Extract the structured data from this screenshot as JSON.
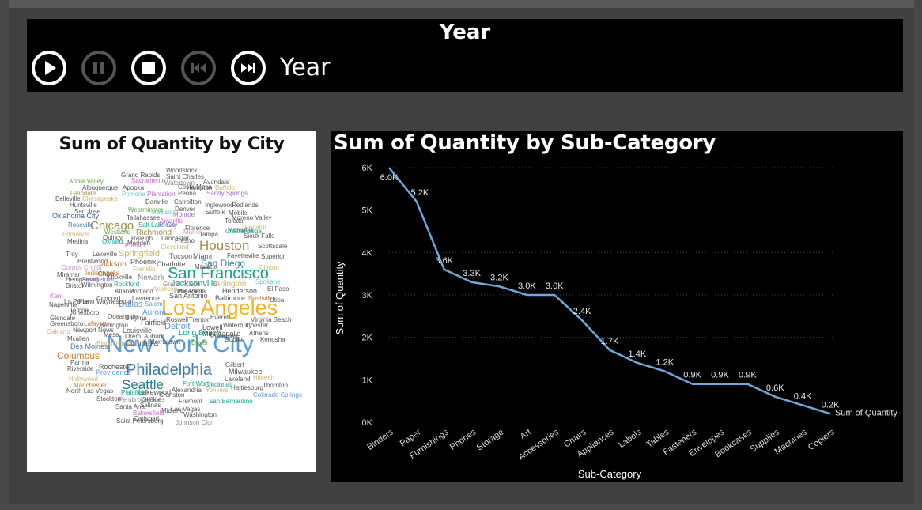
{
  "player": {
    "title": "Year",
    "label": "Year",
    "buttons": [
      {
        "name": "play-button",
        "icon": "play-icon",
        "enabled": true
      },
      {
        "name": "pause-button",
        "icon": "pause-icon",
        "enabled": false
      },
      {
        "name": "stop-button",
        "icon": "stop-icon",
        "enabled": true
      },
      {
        "name": "skip-back-button",
        "icon": "skip-back-icon",
        "enabled": false
      },
      {
        "name": "skip-forward-button",
        "icon": "skip-forward-icon",
        "enabled": true
      }
    ]
  },
  "wordcloud": {
    "title": "Sum of Quantity by City",
    "words": [
      {
        "text": "New York City",
        "color": "#5b9bd5"
      },
      {
        "text": "Los Angeles",
        "color": "#f0b429"
      },
      {
        "text": "Philadelphia",
        "color": "#3a7ca5"
      },
      {
        "text": "San Francisco",
        "color": "#17a08a"
      },
      {
        "text": "Seattle",
        "color": "#1f7a8c"
      },
      {
        "text": "Houston",
        "color": "#a08c4e"
      },
      {
        "text": "Chicago",
        "color": "#a08c4e"
      },
      {
        "text": "Columbus",
        "color": "#c97a2e"
      },
      {
        "text": "San Diego",
        "color": "#3a7ca5"
      },
      {
        "text": "Springfield",
        "color": "#c9b86e"
      },
      {
        "text": "Dallas",
        "color": "#5b9bd5"
      },
      {
        "text": "Jacksonville",
        "color": "#17a08a"
      },
      {
        "text": "Detroit",
        "color": "#5b9bd5"
      },
      {
        "text": "Jackson",
        "color": "#c97a2e"
      },
      {
        "text": "Richmond",
        "color": "#a08c4e"
      },
      {
        "text": "Columbia",
        "color": "#555555"
      },
      {
        "text": "Long Beach",
        "color": "#17a08a"
      },
      {
        "text": "Aurora",
        "color": "#5b9bd5"
      },
      {
        "text": "Newark",
        "color": "#888888"
      },
      {
        "text": "Arlington",
        "color": "#c9b86e"
      },
      {
        "text": "Henderson",
        "color": "#555555"
      },
      {
        "text": "Phoenix",
        "color": "#555555"
      },
      {
        "text": "Charlotte",
        "color": "#555555"
      },
      {
        "text": "Miami",
        "color": "#555555"
      },
      {
        "text": "Tucson",
        "color": "#555555"
      },
      {
        "text": "San Antonio",
        "color": "#555555"
      },
      {
        "text": "Lakewood",
        "color": "#555555"
      },
      {
        "text": "Fairfield",
        "color": "#555555"
      },
      {
        "text": "Louisville",
        "color": "#555555"
      },
      {
        "text": "Milwaukee",
        "color": "#555555"
      },
      {
        "text": "Providence",
        "color": "#5b9bd5"
      },
      {
        "text": "Rochester",
        "color": "#555555"
      },
      {
        "text": "Des Moines",
        "color": "#3a7ca5"
      },
      {
        "text": "Oklahoma City",
        "color": "#3a5ca5"
      },
      {
        "text": "Franklin",
        "color": "#c9b86e"
      },
      {
        "text": "Baltimore",
        "color": "#555555"
      },
      {
        "text": "Minneapolis",
        "color": "#555555"
      },
      {
        "text": "Lowell",
        "color": "#555555"
      },
      {
        "text": "Pasadena",
        "color": "#555555"
      },
      {
        "text": "Salem",
        "color": "#5b9bd5"
      },
      {
        "text": "Portland",
        "color": "#555555"
      },
      {
        "text": "Atlanta",
        "color": "#555555"
      },
      {
        "text": "Burlington",
        "color": "#555555"
      },
      {
        "text": "Concord",
        "color": "#555555"
      },
      {
        "text": "Lawrence",
        "color": "#555555"
      },
      {
        "text": "Knoxville",
        "color": "#555555"
      },
      {
        "text": "Indianapolis",
        "color": "#c97a2e"
      },
      {
        "text": "Wilmington",
        "color": "#555555"
      },
      {
        "text": "Brentwood",
        "color": "#555555"
      },
      {
        "text": "Huntsville",
        "color": "#555555"
      },
      {
        "text": "San Jose",
        "color": "#555555"
      },
      {
        "text": "Quincy",
        "color": "#555555"
      },
      {
        "text": "Memphis",
        "color": "#555555"
      },
      {
        "text": "Lancaster",
        "color": "#555555"
      },
      {
        "text": "Tampa",
        "color": "#555555"
      },
      {
        "text": "Fayetteville",
        "color": "#555555"
      },
      {
        "text": "Chester",
        "color": "#555555"
      },
      {
        "text": "Dublin",
        "color": "#555555"
      },
      {
        "text": "Gilbert",
        "color": "#555555"
      },
      {
        "text": "Lakeland",
        "color": "#555555"
      },
      {
        "text": "Alexandria",
        "color": "#555555"
      },
      {
        "text": "Washington",
        "color": "#555555"
      },
      {
        "text": "Yonkers",
        "color": "#c9b86e"
      },
      {
        "text": "Fort Worth",
        "color": "#17a08a"
      },
      {
        "text": "Cincinnati",
        "color": "#17a08a"
      },
      {
        "text": "Manchester",
        "color": "#c97a2e"
      },
      {
        "text": "Plainfield",
        "color": "#17a08a"
      },
      {
        "text": "Stockton",
        "color": "#555555"
      },
      {
        "text": "Mesa",
        "color": "#555555"
      },
      {
        "text": "Orem",
        "color": "#555555"
      },
      {
        "text": "Auburn",
        "color": "#555555"
      },
      {
        "text": "Dover",
        "color": "#5ca63a"
      },
      {
        "text": "Smyrna",
        "color": "#555555"
      },
      {
        "text": "Roswell",
        "color": "#555555"
      },
      {
        "text": "Trenton",
        "color": "#555555"
      },
      {
        "text": "Everett",
        "color": "#555555"
      },
      {
        "text": "Toledo",
        "color": "#555555"
      },
      {
        "text": "Denver",
        "color": "#555555"
      },
      {
        "text": "Costa Mesa",
        "color": "#555555"
      },
      {
        "text": "Apopka",
        "color": "#555555"
      },
      {
        "text": "Grand Rapids",
        "color": "#555555"
      },
      {
        "text": "Woodstock",
        "color": "#555555"
      },
      {
        "text": "Saint Charles",
        "color": "#555555"
      },
      {
        "text": "Sacramento",
        "color": "#cc66cc"
      },
      {
        "text": "Watertown",
        "color": "#888888"
      },
      {
        "text": "Avondale",
        "color": "#555555"
      },
      {
        "text": "Apple Valley",
        "color": "#5ca63a"
      },
      {
        "text": "Albuquerque",
        "color": "#555555"
      },
      {
        "text": "Glendale",
        "color": "#a08c4e"
      },
      {
        "text": "Belleville",
        "color": "#555555"
      },
      {
        "text": "Chesapeake",
        "color": "#c9b86e"
      },
      {
        "text": "Pomona",
        "color": "#5ccccc"
      },
      {
        "text": "Plantation",
        "color": "#cc66cc"
      },
      {
        "text": "Peoria",
        "color": "#555555"
      },
      {
        "text": "Sandy Springs",
        "color": "#9966cc"
      },
      {
        "text": "Hampton",
        "color": "#555555"
      },
      {
        "text": "Buffalo",
        "color": "#c9b86e"
      },
      {
        "text": "Westminster",
        "color": "#5ca63a"
      },
      {
        "text": "Danville",
        "color": "#555555"
      },
      {
        "text": "Carrollton",
        "color": "#555555"
      },
      {
        "text": "Inglewood",
        "color": "#555555"
      },
      {
        "text": "Redlands",
        "color": "#555555"
      },
      {
        "text": "Suffolk",
        "color": "#555555"
      },
      {
        "text": "Mobile",
        "color": "#555555"
      },
      {
        "text": "Moreno Valley",
        "color": "#555555"
      },
      {
        "text": "Monroe",
        "color": "#9966cc"
      },
      {
        "text": "Madison",
        "color": "#5ccccc"
      },
      {
        "text": "Amarillo",
        "color": "#cc66cc"
      },
      {
        "text": "Tallahassee",
        "color": "#555555"
      },
      {
        "text": "Roseville",
        "color": "#3a7ca5"
      },
      {
        "text": "Westland",
        "color": "#5ca63a"
      },
      {
        "text": "Edmonds",
        "color": "#c9b86e"
      },
      {
        "text": "Salt Lake City",
        "color": "#17a08a"
      },
      {
        "text": "Provo",
        "color": "#9966cc"
      },
      {
        "text": "Florence",
        "color": "#555555"
      },
      {
        "text": "Marion",
        "color": "#cc99cc"
      },
      {
        "text": "Decatur",
        "color": "#c9b86e"
      },
      {
        "text": "Chattanooga",
        "color": "#17a08a"
      },
      {
        "text": "Sioux Falls",
        "color": "#555555"
      },
      {
        "text": "Scottsdale",
        "color": "#555555"
      },
      {
        "text": "Medina",
        "color": "#555555"
      },
      {
        "text": "Oxnard",
        "color": "#17a08a"
      },
      {
        "text": "Meriden",
        "color": "#555555"
      },
      {
        "text": "Raleigh",
        "color": "#555555"
      },
      {
        "text": "Pueblo",
        "color": "#cc66cc"
      },
      {
        "text": "Cleveland",
        "color": "#c9b86e"
      },
      {
        "text": "Fresno",
        "color": "#555555"
      },
      {
        "text": "Troy",
        "color": "#555555"
      },
      {
        "text": "Lakeville",
        "color": "#555555"
      },
      {
        "text": "Superior",
        "color": "#555555"
      },
      {
        "text": "Clinton",
        "color": "#c9b86e"
      },
      {
        "text": "Corpus Christi",
        "color": "#cc99cc"
      },
      {
        "text": "Marietta",
        "color": "#555555"
      },
      {
        "text": "Miramar",
        "color": "#555555"
      },
      {
        "text": "Chico",
        "color": "#555555"
      },
      {
        "text": "Spokane",
        "color": "#5ccccc"
      },
      {
        "text": "El Paso",
        "color": "#555555"
      },
      {
        "text": "Hempstead",
        "color": "#555555"
      },
      {
        "text": "Georgetown",
        "color": "#9966cc"
      },
      {
        "text": "Bristol",
        "color": "#555555"
      },
      {
        "text": "Rockford",
        "color": "#17a08a"
      },
      {
        "text": "Grand Prairie",
        "color": "#888888"
      },
      {
        "text": "Little Rock",
        "color": "#555555"
      },
      {
        "text": "Anaheim",
        "color": "#c9b86e"
      },
      {
        "text": "Kent",
        "color": "#cc66cc"
      },
      {
        "text": "Nashville",
        "color": "#c97a2e"
      },
      {
        "text": "Utica",
        "color": "#555555"
      },
      {
        "text": "La Porte",
        "color": "#555555"
      },
      {
        "text": "Waynesboro",
        "color": "#555555"
      },
      {
        "text": "Plano",
        "color": "#555555"
      },
      {
        "text": "Naperville",
        "color": "#555555"
      },
      {
        "text": "Morristown",
        "color": "#555555"
      },
      {
        "text": "Tempe",
        "color": "#555555"
      },
      {
        "text": "Jonesboro",
        "color": "#555555"
      },
      {
        "text": "Glendale",
        "color": "#555555"
      },
      {
        "text": "Oceanside",
        "color": "#555555"
      },
      {
        "text": "Waterbury",
        "color": "#555555"
      },
      {
        "text": "Virginia Beach",
        "color": "#555555"
      },
      {
        "text": "Greensboro",
        "color": "#555555"
      },
      {
        "text": "Lafayette",
        "color": "#c97a2e"
      },
      {
        "text": "Oakland",
        "color": "#c9b86e"
      },
      {
        "text": "Newport News",
        "color": "#555555"
      },
      {
        "text": "Athens",
        "color": "#555555"
      },
      {
        "text": "Redmond",
        "color": "#555555"
      },
      {
        "text": "Kenosha",
        "color": "#555555"
      },
      {
        "text": "Mcallen",
        "color": "#555555"
      },
      {
        "text": "Bloomington",
        "color": "#c9b86e"
      },
      {
        "text": "Parma",
        "color": "#555555"
      },
      {
        "text": "Riverside",
        "color": "#555555"
      },
      {
        "text": "Hollywood",
        "color": "#c9b86e"
      },
      {
        "text": "Hialeah",
        "color": "#c9b86e"
      },
      {
        "text": "Thornton",
        "color": "#555555"
      },
      {
        "text": "Hattiesburg",
        "color": "#555555"
      },
      {
        "text": "Colorado Springs",
        "color": "#5b9bd5"
      },
      {
        "text": "North Las Vegas",
        "color": "#555555"
      },
      {
        "text": "Cranston",
        "color": "#555555"
      },
      {
        "text": "Pembroke Pines",
        "color": "#888888"
      },
      {
        "text": "Skokie",
        "color": "#555555"
      },
      {
        "text": "Fremont",
        "color": "#555555"
      },
      {
        "text": "San Bernardino",
        "color": "#17a08a"
      },
      {
        "text": "Santa Ana",
        "color": "#555555"
      },
      {
        "text": "Salinas",
        "color": "#555555"
      },
      {
        "text": "Las Vegas",
        "color": "#555555"
      },
      {
        "text": "Bakersfield",
        "color": "#cc66cc"
      },
      {
        "text": "Midland",
        "color": "#555555"
      },
      {
        "text": "Carlsbad",
        "color": "#555555"
      },
      {
        "text": "Saint Petersburg",
        "color": "#555555"
      },
      {
        "text": "Johnson City",
        "color": "#888888"
      },
      {
        "text": "Durham",
        "color": "#c9b86e"
      },
      {
        "text": "Montgomery",
        "color": "#c9b86e"
      },
      {
        "text": "Laredo",
        "color": "#5ccccc"
      },
      {
        "text": "Mount Vernon",
        "color": "#555555"
      },
      {
        "text": "Redondo Beach",
        "color": "#cc66cc"
      }
    ]
  },
  "chart_data": {
    "type": "line",
    "title": "Sum of Quantity by Sub-Category",
    "xlabel": "Sub-Category",
    "ylabel": "Sum of Quantity",
    "series_name": "Sum of Quantity",
    "categories": [
      "Binders",
      "Paper",
      "Furnishings",
      "Phones",
      "Storage",
      "Art",
      "Accessories",
      "Chairs",
      "Appliances",
      "Labels",
      "Tables",
      "Fasteners",
      "Envelopes",
      "Bookcases",
      "Supplies",
      "Machines",
      "Copiers"
    ],
    "values": [
      6000,
      5200,
      3600,
      3300,
      3200,
      3000,
      3000,
      2400,
      1700,
      1400,
      1200,
      900,
      900,
      900,
      600,
      400,
      200
    ],
    "data_labels": [
      "6.0K",
      "5.2K",
      "3.6K",
      "3.3K",
      "3.2K",
      "3.0K",
      "3.0K",
      "2.4K",
      "1.7K",
      "1.4K",
      "1.2K",
      "0.9K",
      "0.9K",
      "0.9K",
      "0.6K",
      "0.4K",
      "0.2K"
    ],
    "ylim": [
      0,
      6000
    ],
    "yticks": [
      "0K",
      "1K",
      "2K",
      "3K",
      "4K",
      "5K",
      "6K"
    ],
    "line_color": "#6fa8dc",
    "grid": true,
    "legend": "right"
  }
}
